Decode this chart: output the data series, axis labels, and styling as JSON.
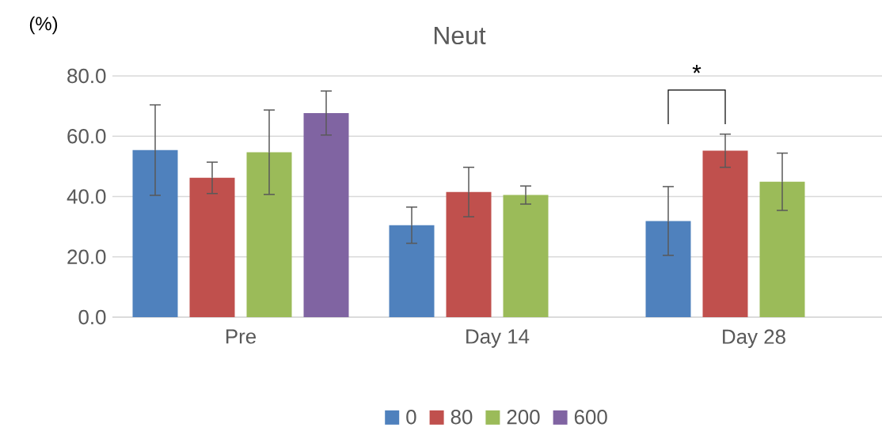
{
  "chart_data": {
    "type": "bar",
    "title": "Neut",
    "ylabel": "(%)",
    "categories": [
      "Pre",
      "Day 14",
      "Day 28"
    ],
    "series": [
      {
        "name": "0",
        "color": "#4f81bd",
        "values": [
          55.4,
          30.5,
          31.9
        ],
        "errors": [
          15,
          6,
          11.4
        ]
      },
      {
        "name": "80",
        "color": "#c0504d",
        "values": [
          46.2,
          41.5,
          55.2
        ],
        "errors": [
          5.2,
          8.2,
          5.5
        ]
      },
      {
        "name": "200",
        "color": "#9bbb59",
        "values": [
          54.7,
          40.5,
          44.9
        ],
        "errors": [
          14,
          3,
          9.5
        ]
      },
      {
        "name": "600",
        "color": "#8064a2",
        "values": [
          67.7,
          null,
          null
        ],
        "errors": [
          7.3,
          null,
          null
        ]
      }
    ],
    "ylim": [
      0,
      80
    ],
    "yticks": [
      {
        "value": 0,
        "label": "0.0"
      },
      {
        "value": 20,
        "label": "20.0"
      },
      {
        "value": 40,
        "label": "40.0"
      },
      {
        "value": 60,
        "label": "60.0"
      },
      {
        "value": 80,
        "label": "80.0"
      }
    ],
    "grid": "y",
    "legend": "bottom",
    "annotations": [
      "*"
    ]
  }
}
